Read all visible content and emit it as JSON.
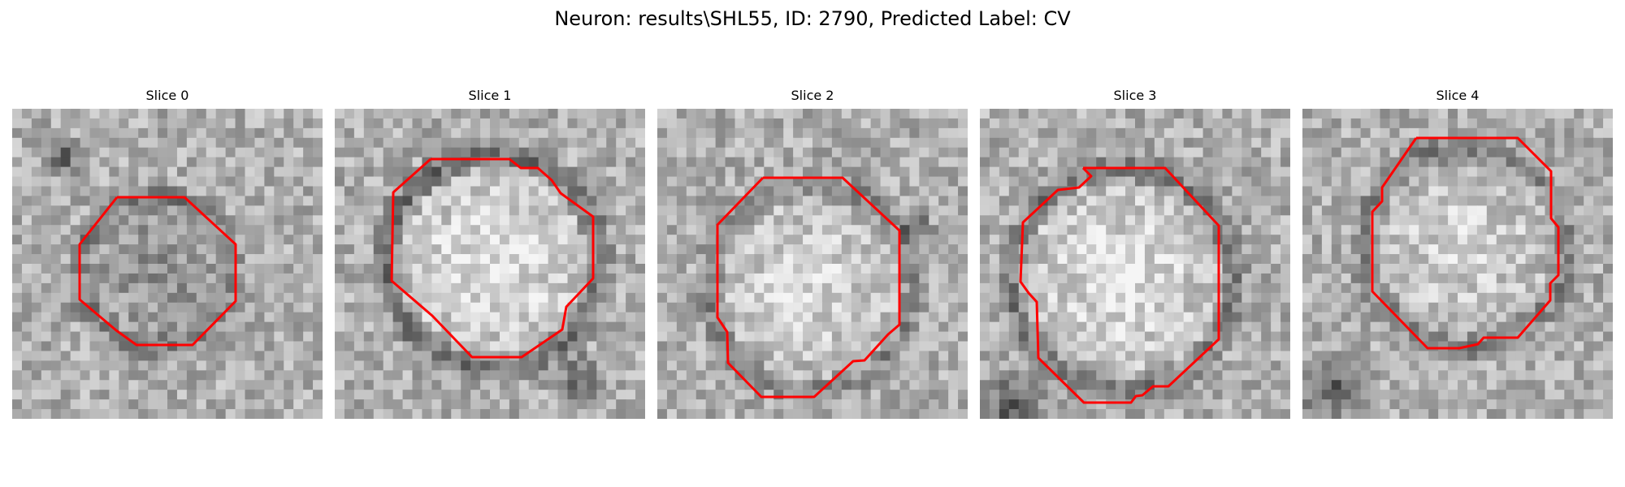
{
  "title": "Neuron: results\\SHL55, ID: 2790, Predicted Label: CV",
  "colors": {
    "contour": "#ff0000",
    "background": "#ffffff"
  },
  "slices": [
    {
      "label": "Slice 0"
    },
    {
      "label": "Slice 1"
    },
    {
      "label": "Slice 2"
    },
    {
      "label": "Slice 3"
    },
    {
      "label": "Slice 4"
    }
  ]
}
